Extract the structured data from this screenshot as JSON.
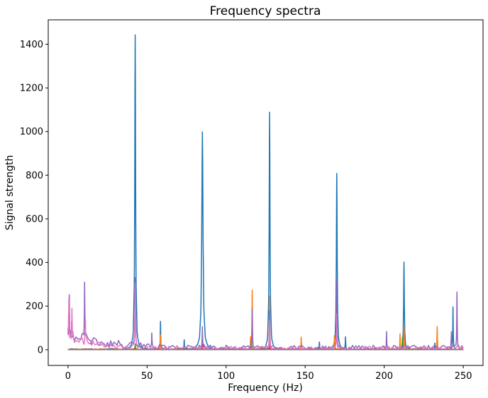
{
  "chart_data": {
    "type": "line",
    "title": "Frequency spectra",
    "xlabel": "Frequency (Hz)",
    "ylabel": "Signal strength",
    "xlim": [
      -12.5,
      262.5
    ],
    "ylim": [
      -72,
      1512
    ],
    "xticks": [
      0,
      50,
      100,
      150,
      200,
      250
    ],
    "xtick_labels": [
      "0",
      "50",
      "100",
      "150",
      "200",
      "250"
    ],
    "yticks": [
      0,
      200,
      400,
      600,
      800,
      1000,
      1200,
      1400
    ],
    "ytick_labels": [
      "0",
      "200",
      "400",
      "600",
      "800",
      "1000",
      "1200",
      "1400"
    ],
    "grid": false,
    "legend": "none",
    "x_range": [
      0,
      250
    ],
    "step": 1,
    "series": [
      {
        "color": "#1f77b4",
        "baseline": 2,
        "noise": 2.5,
        "noise_seed": 3,
        "peaks": [
          {
            "x": 42.5,
            "y": 1440,
            "width": 0.6
          },
          {
            "x": 85,
            "y": 998,
            "width": 0.9
          },
          {
            "x": 127.5,
            "y": 1085,
            "width": 0.6
          },
          {
            "x": 170,
            "y": 805,
            "width": 0.6
          },
          {
            "x": 212.5,
            "y": 400,
            "width": 0.5
          },
          {
            "x": 58.5,
            "y": 128,
            "width": 0.3
          },
          {
            "x": 73.5,
            "y": 40,
            "width": 0.3
          },
          {
            "x": 243.5,
            "y": 193,
            "width": 0.3
          },
          {
            "x": 175.5,
            "y": 55,
            "width": 0.3
          },
          {
            "x": 159,
            "y": 35,
            "width": 0.3
          },
          {
            "x": 232,
            "y": 30,
            "width": 0.3
          }
        ]
      },
      {
        "color": "#ff7f0e",
        "baseline": 2,
        "noise": 2,
        "noise_seed": 11,
        "peaks": [
          {
            "x": 116.5,
            "y": 270,
            "width": 0.3
          },
          {
            "x": 127.5,
            "y": 245,
            "width": 0.3
          },
          {
            "x": 58.5,
            "y": 68,
            "width": 0.3
          },
          {
            "x": 147.5,
            "y": 55,
            "width": 0.3
          },
          {
            "x": 168.5,
            "y": 62,
            "width": 0.3
          },
          {
            "x": 212.5,
            "y": 105,
            "width": 0.3
          },
          {
            "x": 233.5,
            "y": 104,
            "width": 0.3
          },
          {
            "x": 210,
            "y": 70,
            "width": 0.3
          },
          {
            "x": 115.5,
            "y": 52,
            "width": 0.3
          }
        ]
      },
      {
        "color": "#2ca02c",
        "baseline": 1.5,
        "noise": 1.5,
        "noise_seed": 23,
        "peaks": [
          {
            "x": 211.5,
            "y": 55,
            "width": 0.3
          },
          {
            "x": 116,
            "y": 40,
            "width": 0.3
          },
          {
            "x": 42.5,
            "y": 25,
            "width": 0.3
          }
        ]
      },
      {
        "color": "#d62728",
        "baseline": 1.5,
        "noise": 1.5,
        "noise_seed": 31,
        "peaks": [
          {
            "x": 85,
            "y": 20,
            "width": 0.3
          },
          {
            "x": 127.5,
            "y": 22,
            "width": 0.3
          }
        ]
      },
      {
        "color": "#9467bd",
        "baseline": 8,
        "noise": 12,
        "noise_seed": 41,
        "decay": {
          "amp": 60,
          "tau": 25
        },
        "peaks": [
          {
            "x": 10.5,
            "y": 280,
            "width": 0.3
          },
          {
            "x": 42.5,
            "y": 315,
            "width": 0.4
          },
          {
            "x": 85,
            "y": 88,
            "width": 0.4
          },
          {
            "x": 116.5,
            "y": 175,
            "width": 0.3
          },
          {
            "x": 127.5,
            "y": 180,
            "width": 0.3
          },
          {
            "x": 170,
            "y": 310,
            "width": 0.3
          },
          {
            "x": 246,
            "y": 258,
            "width": 0.3
          },
          {
            "x": 0.8,
            "y": 170,
            "width": 0.3
          },
          {
            "x": 201.5,
            "y": 68,
            "width": 0.3
          },
          {
            "x": 242.5,
            "y": 80,
            "width": 0.3
          },
          {
            "x": 53,
            "y": 65,
            "width": 0.3
          }
        ]
      },
      {
        "color": "#8c564b",
        "baseline": 1,
        "noise": 1,
        "noise_seed": 53,
        "peaks": []
      },
      {
        "color": "#e377c2",
        "baseline": 6,
        "noise": 10,
        "noise_seed": 67,
        "decay": {
          "amp": 80,
          "tau": 12
        },
        "peaks": [
          {
            "x": 42.5,
            "y": 300,
            "width": 0.4
          },
          {
            "x": 127.5,
            "y": 120,
            "width": 0.3
          },
          {
            "x": 170,
            "y": 160,
            "width": 0.3
          },
          {
            "x": 0.5,
            "y": 150,
            "width": 0.3
          },
          {
            "x": 2.5,
            "y": 120,
            "width": 0.3
          },
          {
            "x": 11,
            "y": 110,
            "width": 0.3
          }
        ]
      },
      {
        "color": "#7f7f7f",
        "baseline": 0.5,
        "noise": 0.5,
        "noise_seed": 71,
        "peaks": []
      }
    ]
  }
}
